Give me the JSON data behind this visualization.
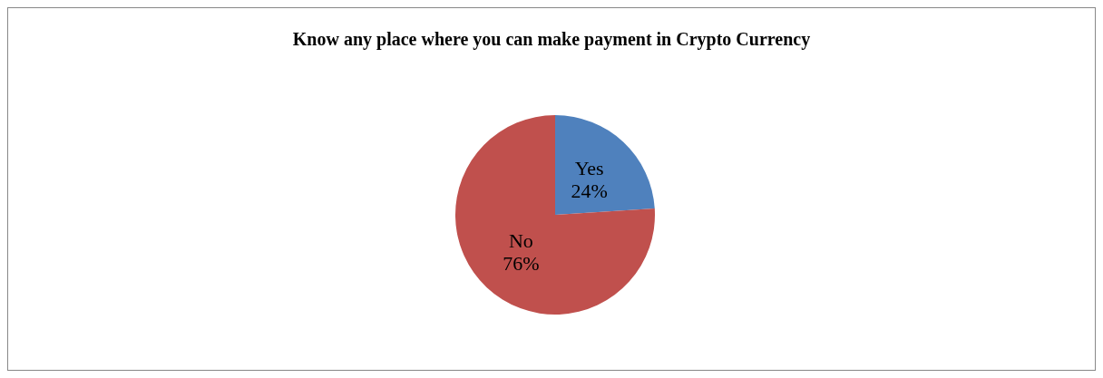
{
  "chart_data": {
    "type": "pie",
    "title": "Know any place where you can make payment in Crypto Currency",
    "categories": [
      "Yes",
      "No"
    ],
    "values": [
      24,
      76
    ],
    "colors": [
      "#4f81bd",
      "#c0504d"
    ],
    "value_labels": [
      "24%",
      "76%"
    ],
    "legend": false
  }
}
